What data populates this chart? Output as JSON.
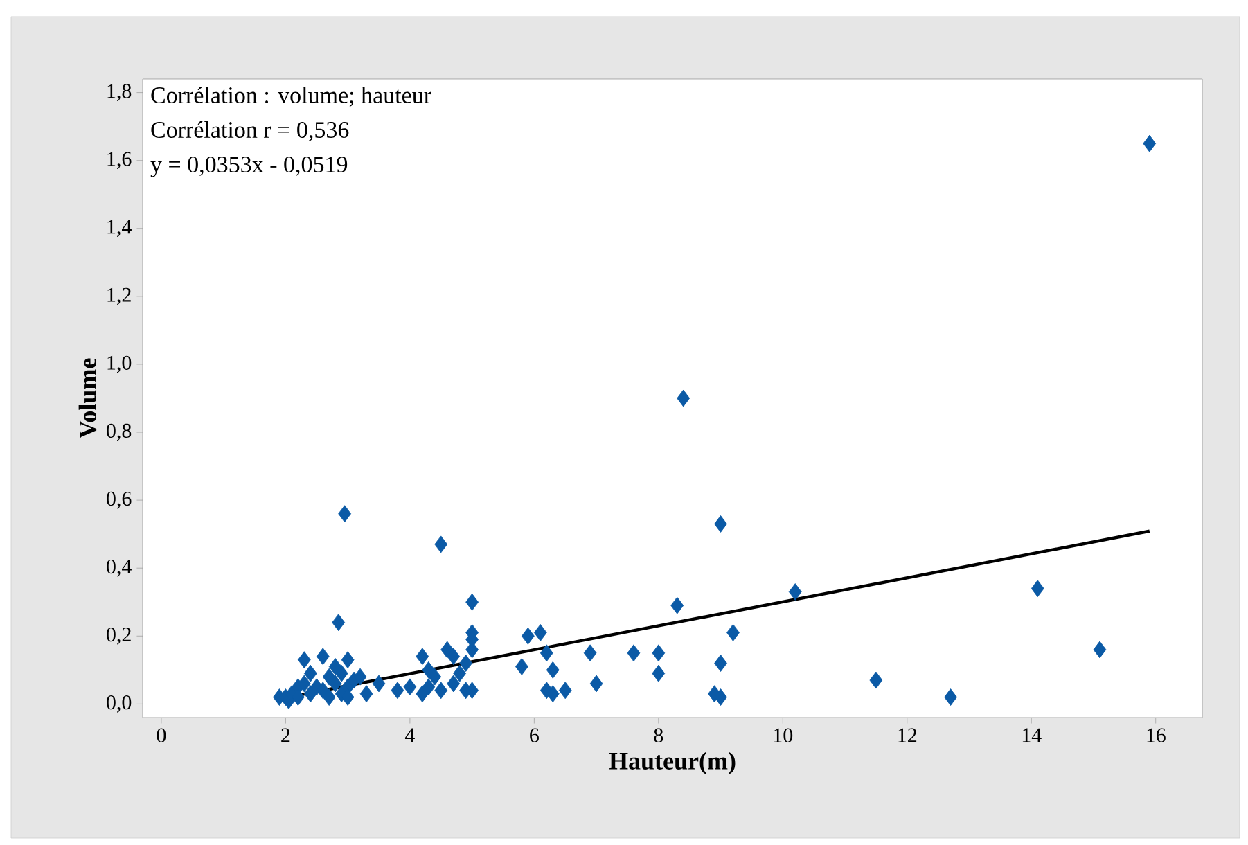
{
  "chart_data": {
    "type": "scatter",
    "xlabel": "Hauteur(m)",
    "ylabel": "Volume",
    "annotations": [
      "Corrélation : volume; hauteur",
      "Corrélation r = 0,536",
      "y = 0,0353x - 0,0519"
    ],
    "xlim": [
      -0.3,
      16.75
    ],
    "ylim": [
      -0.04,
      1.84
    ],
    "xticks": [
      0,
      2,
      4,
      6,
      8,
      10,
      12,
      14,
      16
    ],
    "yticks": [
      {
        "value": 0,
        "label": "0,0"
      },
      {
        "value": 0.2,
        "label": "0,2"
      },
      {
        "value": 0.4,
        "label": "0,4"
      },
      {
        "value": 0.6,
        "label": "0,6"
      },
      {
        "value": 0.8,
        "label": "0,8"
      },
      {
        "value": 1.0,
        "label": "1,0"
      },
      {
        "value": 1.2,
        "label": "1,2"
      },
      {
        "value": 1.4,
        "label": "1,4"
      },
      {
        "value": 1.6,
        "label": "1,6"
      },
      {
        "value": 1.8,
        "label": "1,8"
      }
    ],
    "grid": false,
    "series": [
      {
        "marker": "diamond",
        "color": "#0b5aa6",
        "x": [
          1.9,
          2.0,
          2.05,
          2.1,
          2.2,
          2.2,
          2.3,
          2.3,
          2.4,
          2.4,
          2.5,
          2.6,
          2.6,
          2.7,
          2.7,
          2.8,
          2.8,
          2.85,
          2.9,
          2.9,
          2.95,
          3.0,
          3.0,
          3.0,
          3.1,
          3.2,
          3.3,
          3.5,
          3.8,
          4.0,
          4.2,
          4.2,
          4.3,
          4.3,
          4.4,
          4.5,
          4.5,
          4.6,
          4.7,
          4.7,
          4.8,
          4.9,
          4.9,
          5.0,
          5.0,
          5.0,
          5.0,
          5.0,
          5.8,
          5.9,
          6.1,
          6.2,
          6.2,
          6.3,
          6.3,
          6.5,
          6.9,
          7.0,
          7.6,
          8.0,
          8.0,
          8.3,
          8.4,
          8.9,
          9.0,
          9.0,
          9.0,
          9.2,
          10.2,
          11.5,
          12.7,
          14.1,
          15.1,
          15.9
        ],
        "values": [
          0.02,
          0.02,
          0.01,
          0.03,
          0.05,
          0.02,
          0.06,
          0.13,
          0.09,
          0.03,
          0.05,
          0.14,
          0.04,
          0.02,
          0.08,
          0.06,
          0.11,
          0.24,
          0.03,
          0.09,
          0.56,
          0.13,
          0.05,
          0.02,
          0.07,
          0.08,
          0.03,
          0.06,
          0.04,
          0.05,
          0.14,
          0.03,
          0.1,
          0.05,
          0.08,
          0.04,
          0.47,
          0.16,
          0.06,
          0.14,
          0.09,
          0.12,
          0.04,
          0.3,
          0.21,
          0.16,
          0.04,
          0.19,
          0.11,
          0.2,
          0.21,
          0.04,
          0.15,
          0.03,
          0.1,
          0.04,
          0.15,
          0.06,
          0.15,
          0.15,
          0.09,
          0.29,
          0.9,
          0.03,
          0.02,
          0.53,
          0.12,
          0.21,
          0.33,
          0.07,
          0.02,
          0.34,
          0.16,
          1.65
        ]
      },
      {
        "type": "line",
        "color": "#000000",
        "x": [
          1.9,
          15.9
        ],
        "values": [
          0.015,
          0.509
        ]
      }
    ]
  }
}
